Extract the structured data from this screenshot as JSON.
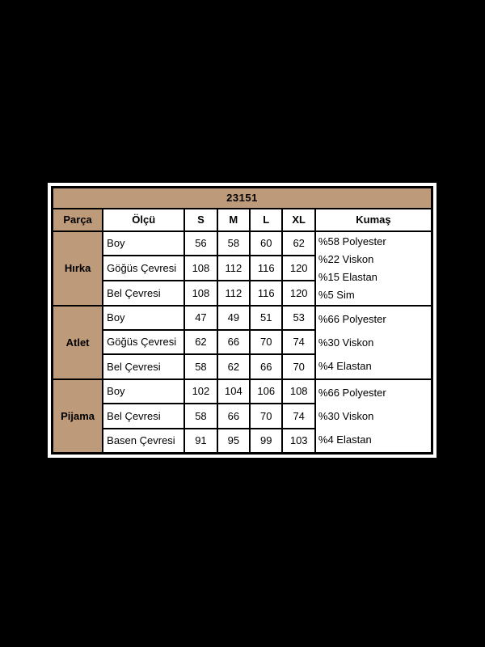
{
  "page": {
    "background_color": "#000000"
  },
  "table": {
    "title": "23151",
    "accent_color": "#bd9a7a",
    "border_color": "#000000",
    "columns": [
      "Parça",
      "Ölçü",
      "S",
      "M",
      "L",
      "XL",
      "Kumaş"
    ],
    "groups": [
      {
        "name": "Hırka",
        "rows": [
          {
            "label": "Boy",
            "values": [
              "56",
              "58",
              "60",
              "62"
            ]
          },
          {
            "label": "Göğüs Çevresi",
            "values": [
              "108",
              "112",
              "116",
              "120"
            ]
          },
          {
            "label": "Bel Çevresi",
            "values": [
              "108",
              "112",
              "116",
              "120"
            ]
          }
        ],
        "fabric": [
          "%58 Polyester",
          "%22 Viskon",
          "%15 Elastan",
          "%5 Sim"
        ]
      },
      {
        "name": "Atlet",
        "rows": [
          {
            "label": "Boy",
            "values": [
              "47",
              "49",
              "51",
              "53"
            ]
          },
          {
            "label": "Göğüs Çevresi",
            "values": [
              "62",
              "66",
              "70",
              "74"
            ]
          },
          {
            "label": "Bel Çevresi",
            "values": [
              "58",
              "62",
              "66",
              "70"
            ]
          }
        ],
        "fabric": [
          "%66 Polyester",
          "%30 Viskon",
          "%4 Elastan"
        ]
      },
      {
        "name": "Pijama",
        "rows": [
          {
            "label": "Boy",
            "values": [
              "102",
              "104",
              "106",
              "108"
            ]
          },
          {
            "label": "Bel Çevresi",
            "values": [
              "58",
              "66",
              "70",
              "74"
            ]
          },
          {
            "label": "Basen Çevresi",
            "values": [
              "91",
              "95",
              "99",
              "103"
            ]
          }
        ],
        "fabric": [
          "%66 Polyester",
          "%30 Viskon",
          "%4 Elastan"
        ]
      }
    ]
  },
  "chart_data": {
    "type": "table",
    "title": "23151",
    "columns": [
      "Parça",
      "Ölçü",
      "S",
      "M",
      "L",
      "XL",
      "Kumaş"
    ],
    "rows": [
      [
        "Hırka",
        "Boy",
        56,
        58,
        60,
        62,
        "%58 Polyester %22 Viskon %15 Elastan %5 Sim"
      ],
      [
        "Hırka",
        "Göğüs Çevresi",
        108,
        112,
        116,
        120,
        "%58 Polyester %22 Viskon %15 Elastan %5 Sim"
      ],
      [
        "Hırka",
        "Bel Çevresi",
        108,
        112,
        116,
        120,
        "%58 Polyester %22 Viskon %15 Elastan %5 Sim"
      ],
      [
        "Atlet",
        "Boy",
        47,
        49,
        51,
        53,
        "%66 Polyester %30 Viskon %4 Elastan"
      ],
      [
        "Atlet",
        "Göğüs Çevresi",
        62,
        66,
        70,
        74,
        "%66 Polyester %30 Viskon %4 Elastan"
      ],
      [
        "Atlet",
        "Bel Çevresi",
        58,
        62,
        66,
        70,
        "%66 Polyester %30 Viskon %4 Elastan"
      ],
      [
        "Pijama",
        "Boy",
        102,
        104,
        106,
        108,
        "%66 Polyester %30 Viskon %4 Elastan"
      ],
      [
        "Pijama",
        "Bel Çevresi",
        58,
        66,
        70,
        74,
        "%66 Polyester %30 Viskon %4 Elastan"
      ],
      [
        "Pijama",
        "Basen Çevresi",
        91,
        95,
        99,
        103,
        "%66 Polyester %30 Viskon %4 Elastan"
      ]
    ],
    "layout": "black background, centered white table, tan header cells, merged group and fabric cells"
  }
}
